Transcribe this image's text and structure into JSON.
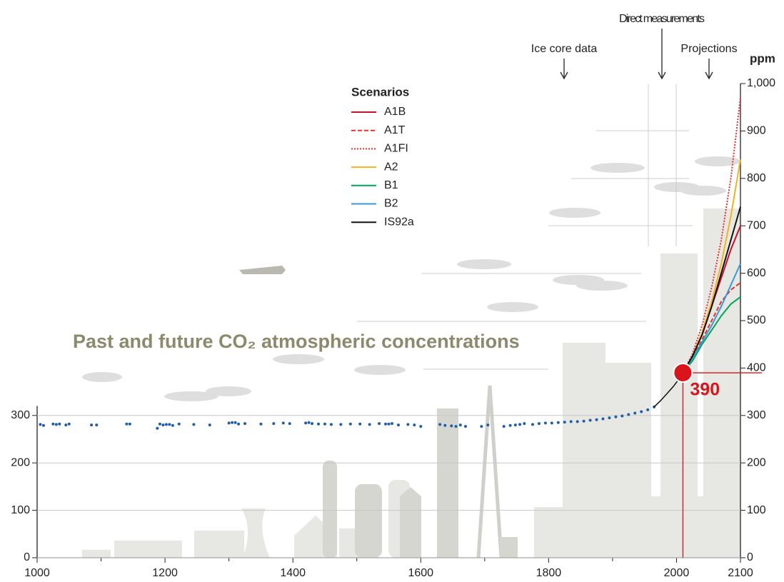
{
  "chart_data": {
    "type": "line",
    "title": "Past and future CO₂ atmospheric concentrations",
    "y_label": "ppm",
    "annotations": [
      "Ice core data",
      "Direct measurements",
      "Projections"
    ],
    "legend_title": "Scenarios",
    "xlim": [
      1000,
      2100
    ],
    "xticks": [
      1000,
      1200,
      1400,
      1600,
      1800,
      2000,
      2100
    ],
    "xminor": [
      1100,
      1300,
      1500,
      1700,
      1900
    ],
    "ylim": [
      0,
      1000
    ],
    "yticks": [
      0,
      100,
      200,
      300,
      400,
      500,
      600,
      700,
      800,
      900,
      {
        "value": 1000,
        "label": "1,000"
      }
    ],
    "left_ylim": [
      0,
      320
    ],
    "left_yticks": [
      0,
      100,
      200,
      300
    ],
    "ice_core": {
      "color": "#1f5fa8",
      "x": [
        1005,
        1010,
        1025,
        1030,
        1035,
        1045,
        1050,
        1085,
        1093,
        1140,
        1145,
        1188,
        1192,
        1197,
        1202,
        1207,
        1212,
        1222,
        1245,
        1270,
        1300,
        1305,
        1310,
        1315,
        1325,
        1350,
        1370,
        1385,
        1395,
        1420,
        1425,
        1430,
        1440,
        1450,
        1460,
        1475,
        1490,
        1505,
        1520,
        1535,
        1545,
        1550,
        1555,
        1565,
        1580,
        1590,
        1600,
        1630,
        1638,
        1648,
        1655,
        1662,
        1670,
        1695,
        1705,
        1730,
        1740,
        1748,
        1755,
        1762,
        1775,
        1785,
        1795,
        1805,
        1815,
        1825,
        1835,
        1845,
        1855,
        1865,
        1875,
        1885,
        1895,
        1905,
        1915,
        1925,
        1935,
        1945,
        1955,
        1965
      ],
      "values": [
        281,
        279,
        282,
        281,
        282,
        280,
        282,
        280,
        280,
        282,
        282,
        273,
        282,
        280,
        281,
        281,
        279,
        282,
        281,
        280,
        284,
        285,
        285,
        282,
        283,
        282,
        283,
        284,
        283,
        284,
        285,
        283,
        282,
        282,
        281,
        281,
        282,
        282,
        281,
        283,
        282,
        282,
        283,
        280,
        281,
        280,
        277,
        281,
        279,
        278,
        277,
        280,
        277,
        277,
        280,
        277,
        279,
        280,
        281,
        283,
        281,
        283,
        284,
        284,
        285,
        286,
        287,
        287,
        288,
        290,
        291,
        293,
        295,
        297,
        299,
        302,
        305,
        308,
        312,
        318
      ]
    },
    "measurements": {
      "color": "#111111",
      "x": [
        1965,
        1975,
        1985,
        1995,
        2005,
        2010
      ],
      "values": [
        318,
        331,
        346,
        361,
        379,
        390
      ]
    },
    "highlight": {
      "x": 2010,
      "value": 390,
      "color": "#d9141b"
    },
    "x": [
      2010,
      2025,
      2040,
      2055,
      2070,
      2085,
      2100
    ],
    "series": [
      {
        "name": "A1B",
        "color": "#c8102e",
        "dash": "solid",
        "values": [
          390,
          425,
          470,
          530,
          590,
          650,
          700
        ]
      },
      {
        "name": "A1T",
        "color": "#e8312f",
        "dash": "dashed",
        "values": [
          390,
          420,
          460,
          500,
          540,
          565,
          580
        ]
      },
      {
        "name": "A1FI",
        "color": "#e8312f",
        "dash": "dotted",
        "values": [
          390,
          430,
          490,
          570,
          670,
          800,
          970
        ]
      },
      {
        "name": "A2",
        "color": "#f0b323",
        "dash": "solid",
        "values": [
          390,
          425,
          475,
          540,
          620,
          720,
          840
        ]
      },
      {
        "name": "B1",
        "color": "#00a65a",
        "dash": "solid",
        "values": [
          390,
          415,
          450,
          480,
          510,
          535,
          550
        ]
      },
      {
        "name": "B2",
        "color": "#3a9ad9",
        "dash": "solid",
        "values": [
          390,
          420,
          455,
          490,
          530,
          575,
          620
        ]
      },
      {
        "name": "IS92a",
        "color": "#111111",
        "dash": "solid",
        "values": [
          390,
          425,
          470,
          530,
          600,
          670,
          740
        ]
      }
    ]
  }
}
